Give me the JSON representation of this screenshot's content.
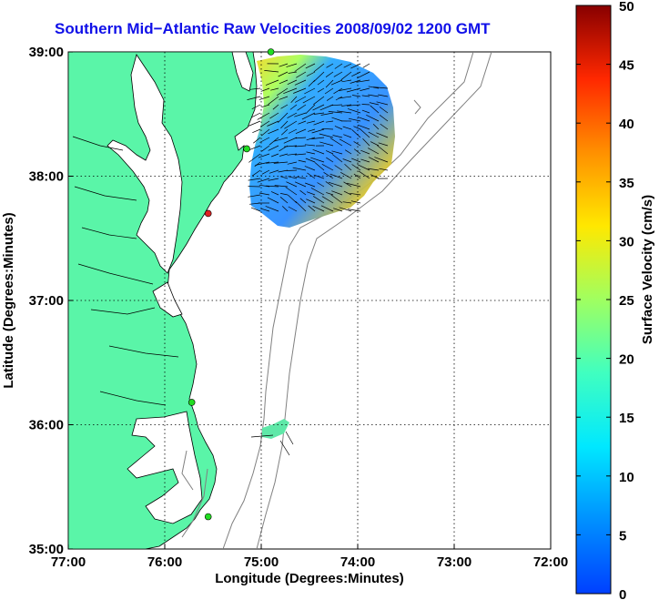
{
  "title": "Southern Mid−Atlantic Raw Velocities 2008/09/02 1200 GMT",
  "map": {
    "xlabel": "Longitude (Degrees:Minutes)",
    "ylabel": "Latitude (Degrees:Minutes)",
    "lon_range": [
      -77,
      -72
    ],
    "lat_range": [
      35,
      39
    ],
    "lon_ticks": [
      -77,
      -76,
      -75,
      -74,
      -73,
      -72
    ],
    "lon_tick_labels": [
      "77:00",
      "76:00",
      "75:00",
      "74:00",
      "73:00",
      "72:00"
    ],
    "lat_ticks": [
      35,
      36,
      37,
      38,
      39
    ],
    "lat_tick_labels": [
      "35:00",
      "36:00",
      "37:00",
      "38:00",
      "39:00"
    ],
    "grid": "dotted",
    "colors": {
      "land": "#5af5a8",
      "ocean": "#ffffff",
      "bathymetry": "#808080",
      "coast": "#000000"
    },
    "stations": [
      {
        "lon": -74.9,
        "lat": 39.0,
        "color": "#22dd22"
      },
      {
        "lon": -75.15,
        "lat": 38.22,
        "color": "#22dd22"
      },
      {
        "lon": -75.55,
        "lat": 37.7,
        "color": "#dd2222"
      },
      {
        "lon": -75.72,
        "lat": 36.18,
        "color": "#22dd22"
      },
      {
        "lon": -75.55,
        "lat": 35.26,
        "color": "#22dd22"
      }
    ]
  },
  "colorbar": {
    "label": "Surface Velocity (cm/s)",
    "min": 0,
    "max": 50,
    "ticks": [
      0,
      5,
      10,
      15,
      20,
      25,
      30,
      35,
      40,
      45,
      50
    ],
    "tick_labels": [
      "0",
      "5",
      "10",
      "15",
      "20",
      "25",
      "30",
      "35",
      "40",
      "45",
      "50"
    ],
    "colormap": "jet"
  }
}
